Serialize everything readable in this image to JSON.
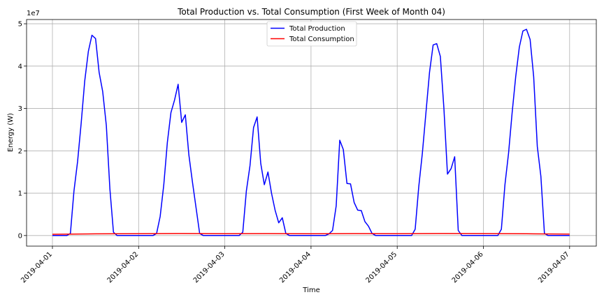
{
  "chart_data": {
    "type": "line",
    "title": "Total Production vs. Total Consumption (First Week of Month 04)",
    "xlabel": "Time",
    "ylabel": "Energy (W)",
    "y_offset_label": "1e7",
    "xlim": [
      "2019-04-01",
      "2019-04-07"
    ],
    "ylim": [
      -2500000,
      51000000
    ],
    "x_ticks": [
      "2019-04-01",
      "2019-04-02",
      "2019-04-03",
      "2019-04-04",
      "2019-04-05",
      "2019-04-06",
      "2019-04-07"
    ],
    "y_ticks": [
      0,
      1,
      2,
      3,
      4,
      5
    ],
    "grid": true,
    "legend_position": "top-center",
    "series": [
      {
        "name": "Total Production",
        "color": "#0000ff",
        "points": [
          [
            "2019-04-01 00:00",
            0
          ],
          [
            "2019-04-01 02:00",
            0
          ],
          [
            "2019-04-01 04:00",
            0
          ],
          [
            "2019-04-01 05:00",
            500000
          ],
          [
            "2019-04-01 06:00",
            10500000
          ],
          [
            "2019-04-01 07:00",
            17500000
          ],
          [
            "2019-04-01 08:00",
            26500000
          ],
          [
            "2019-04-01 09:00",
            36500000
          ],
          [
            "2019-04-01 10:00",
            43500000
          ],
          [
            "2019-04-01 11:00",
            47300000
          ],
          [
            "2019-04-01 12:00",
            46500000
          ],
          [
            "2019-04-01 13:00",
            38500000
          ],
          [
            "2019-04-01 14:00",
            34000000
          ],
          [
            "2019-04-01 15:00",
            26000000
          ],
          [
            "2019-04-01 16:00",
            11000000
          ],
          [
            "2019-04-01 17:00",
            800000
          ],
          [
            "2019-04-01 18:00",
            0
          ],
          [
            "2019-04-02 00:00",
            0
          ],
          [
            "2019-04-02 04:00",
            0
          ],
          [
            "2019-04-02 05:00",
            500000
          ],
          [
            "2019-04-02 06:00",
            4500000
          ],
          [
            "2019-04-02 07:00",
            12000000
          ],
          [
            "2019-04-02 08:00",
            22000000
          ],
          [
            "2019-04-02 09:00",
            29000000
          ],
          [
            "2019-04-02 10:00",
            32000000
          ],
          [
            "2019-04-02 11:00",
            35700000
          ],
          [
            "2019-04-02 12:00",
            26700000
          ],
          [
            "2019-04-02 13:00",
            28500000
          ],
          [
            "2019-04-02 14:00",
            19000000
          ],
          [
            "2019-04-02 15:00",
            12500000
          ],
          [
            "2019-04-02 16:00",
            6500000
          ],
          [
            "2019-04-02 17:00",
            500000
          ],
          [
            "2019-04-02 18:00",
            0
          ],
          [
            "2019-04-03 00:00",
            0
          ],
          [
            "2019-04-03 04:00",
            0
          ],
          [
            "2019-04-03 05:00",
            800000
          ],
          [
            "2019-04-03 06:00",
            10500000
          ],
          [
            "2019-04-03 07:00",
            16500000
          ],
          [
            "2019-04-03 08:00",
            25500000
          ],
          [
            "2019-04-03 09:00",
            28000000
          ],
          [
            "2019-04-03 10:00",
            17000000
          ],
          [
            "2019-04-03 11:00",
            12000000
          ],
          [
            "2019-04-03 12:00",
            15000000
          ],
          [
            "2019-04-03 13:00",
            10000000
          ],
          [
            "2019-04-03 14:00",
            6000000
          ],
          [
            "2019-04-03 15:00",
            3000000
          ],
          [
            "2019-04-03 16:00",
            4200000
          ],
          [
            "2019-04-03 17:00",
            500000
          ],
          [
            "2019-04-03 18:00",
            0
          ],
          [
            "2019-04-04 00:00",
            0
          ],
          [
            "2019-04-04 04:00",
            0
          ],
          [
            "2019-04-04 05:00",
            400000
          ],
          [
            "2019-04-04 06:00",
            1200000
          ],
          [
            "2019-04-04 07:00",
            7000000
          ],
          [
            "2019-04-04 08:00",
            22500000
          ],
          [
            "2019-04-04 09:00",
            20300000
          ],
          [
            "2019-04-04 10:00",
            12300000
          ],
          [
            "2019-04-04 11:00",
            12200000
          ],
          [
            "2019-04-04 12:00",
            7800000
          ],
          [
            "2019-04-04 13:00",
            6000000
          ],
          [
            "2019-04-04 14:00",
            5900000
          ],
          [
            "2019-04-04 15:00",
            3300000
          ],
          [
            "2019-04-04 16:00",
            2200000
          ],
          [
            "2019-04-04 17:00",
            500000
          ],
          [
            "2019-04-04 18:00",
            0
          ],
          [
            "2019-04-05 00:00",
            0
          ],
          [
            "2019-04-05 04:00",
            0
          ],
          [
            "2019-04-05 05:00",
            1500000
          ],
          [
            "2019-04-05 06:00",
            11500000
          ],
          [
            "2019-04-05 07:00",
            19500000
          ],
          [
            "2019-04-05 08:00",
            29000000
          ],
          [
            "2019-04-05 09:00",
            38500000
          ],
          [
            "2019-04-05 10:00",
            45000000
          ],
          [
            "2019-04-05 11:00",
            45300000
          ],
          [
            "2019-04-05 12:00",
            42300000
          ],
          [
            "2019-04-05 13:00",
            30000000
          ],
          [
            "2019-04-05 14:00",
            14500000
          ],
          [
            "2019-04-05 15:00",
            15800000
          ],
          [
            "2019-04-05 16:00",
            18600000
          ],
          [
            "2019-04-05 17:00",
            1200000
          ],
          [
            "2019-04-05 18:00",
            0
          ],
          [
            "2019-04-06 00:00",
            0
          ],
          [
            "2019-04-06 04:00",
            0
          ],
          [
            "2019-04-06 05:00",
            1500000
          ],
          [
            "2019-04-06 06:00",
            12000000
          ],
          [
            "2019-04-06 07:00",
            19500000
          ],
          [
            "2019-04-06 08:00",
            29000000
          ],
          [
            "2019-04-06 09:00",
            37500000
          ],
          [
            "2019-04-06 10:00",
            44500000
          ],
          [
            "2019-04-06 11:00",
            48300000
          ],
          [
            "2019-04-06 12:00",
            48700000
          ],
          [
            "2019-04-06 13:00",
            46300000
          ],
          [
            "2019-04-06 14:00",
            37500000
          ],
          [
            "2019-04-06 15:00",
            21000000
          ],
          [
            "2019-04-06 16:00",
            14000000
          ],
          [
            "2019-04-06 17:00",
            500000
          ],
          [
            "2019-04-06 18:00",
            0
          ],
          [
            "2019-04-07 00:00",
            0
          ]
        ]
      },
      {
        "name": "Total Consumption",
        "color": "#ff0000",
        "points": [
          [
            "2019-04-01 00:00",
            300000
          ],
          [
            "2019-04-01 12:00",
            400000
          ],
          [
            "2019-04-02 00:00",
            450000
          ],
          [
            "2019-04-02 12:00",
            480000
          ],
          [
            "2019-04-03 00:00",
            450000
          ],
          [
            "2019-04-03 12:00",
            470000
          ],
          [
            "2019-04-04 00:00",
            430000
          ],
          [
            "2019-04-04 12:00",
            460000
          ],
          [
            "2019-04-05 00:00",
            450000
          ],
          [
            "2019-04-05 12:00",
            480000
          ],
          [
            "2019-04-06 00:00",
            460000
          ],
          [
            "2019-04-06 12:00",
            420000
          ],
          [
            "2019-04-07 00:00",
            350000
          ]
        ]
      }
    ]
  }
}
